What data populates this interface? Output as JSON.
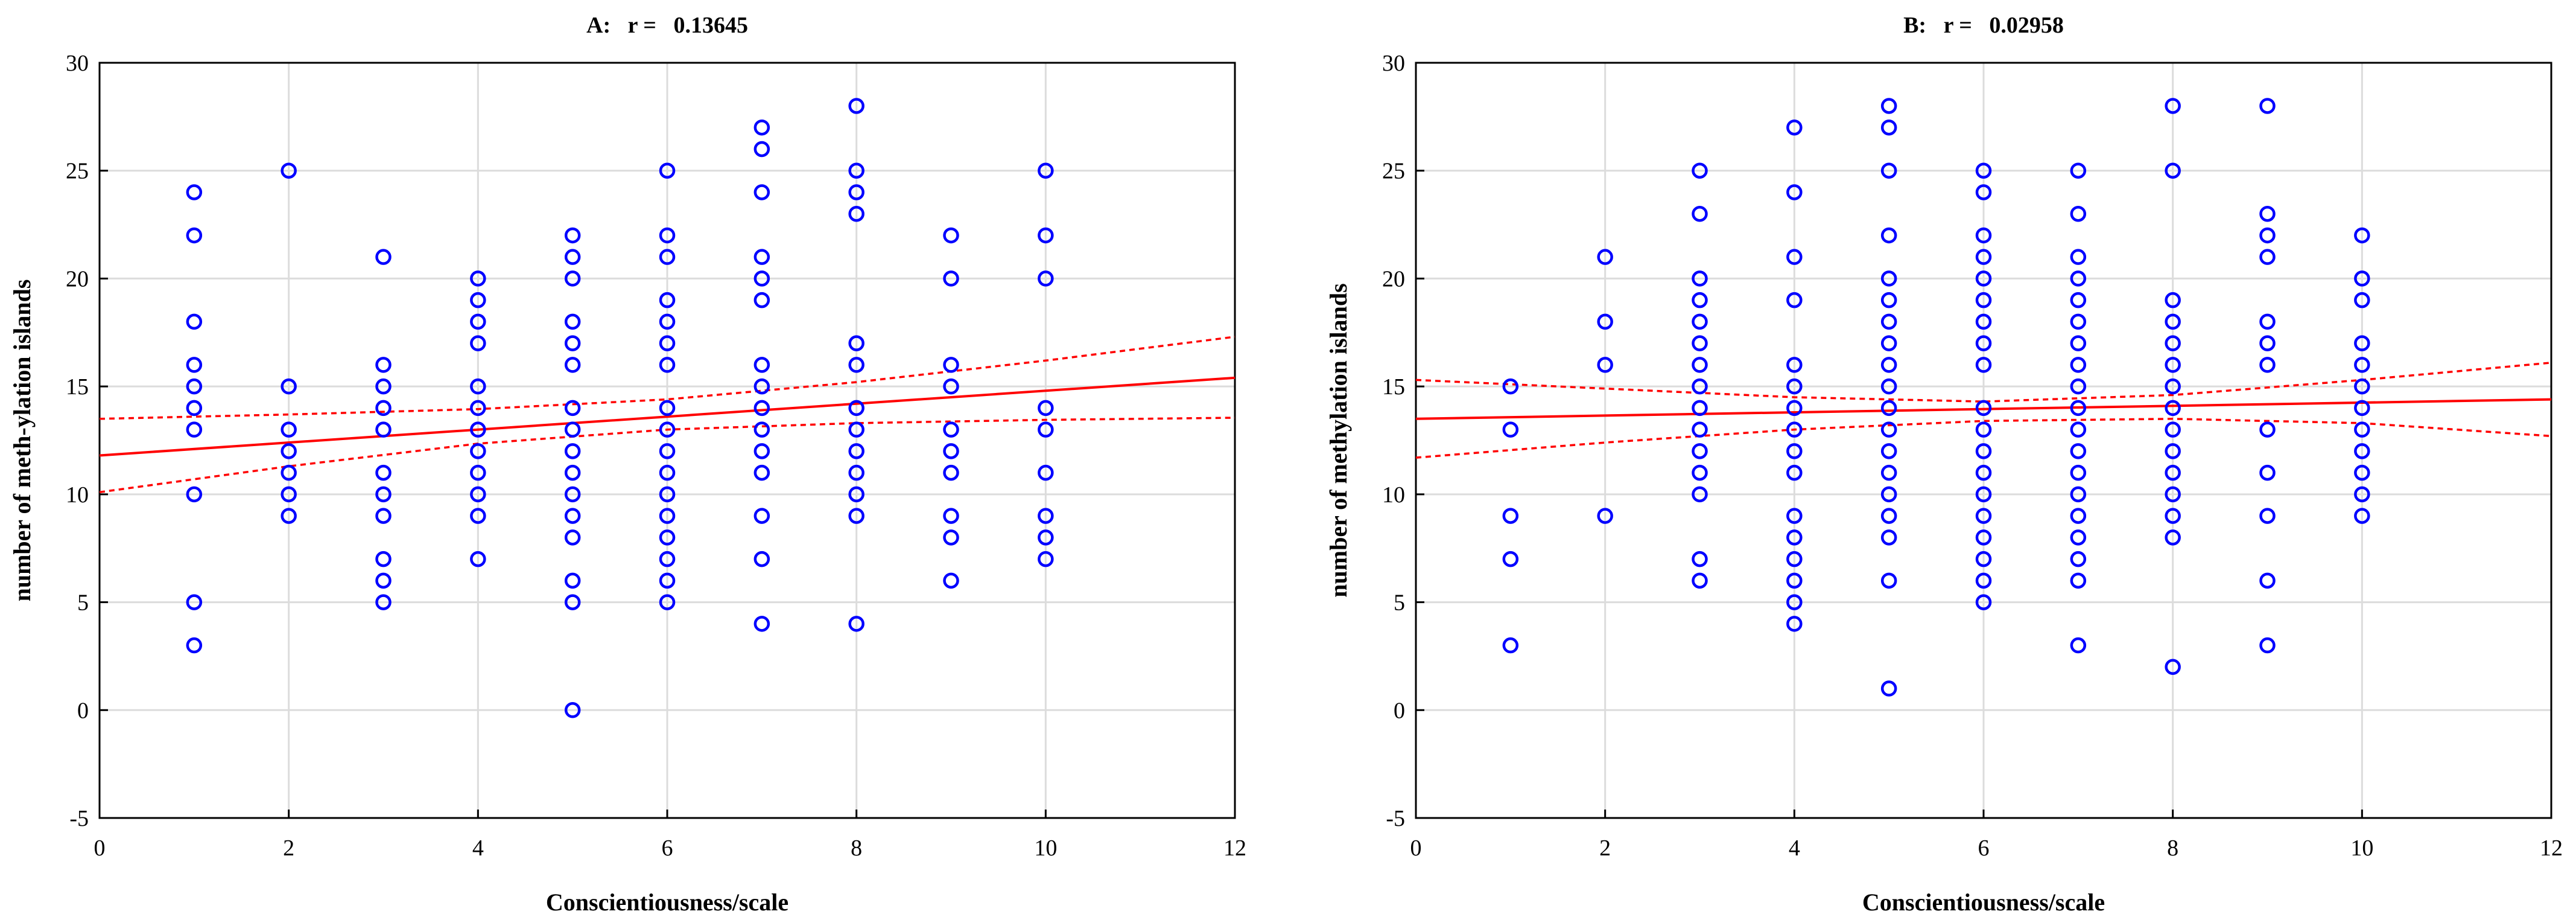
{
  "chart_data": [
    {
      "type": "scatter",
      "title": "A:   r =   0.13645",
      "xlabel": "Conscientiousness/scale",
      "ylabel": "number of meth-ylation islands",
      "xlim": [
        0,
        12
      ],
      "ylim": [
        -5,
        30
      ],
      "xticks": [
        0,
        2,
        4,
        6,
        8,
        10,
        12
      ],
      "yticks": [
        -5,
        0,
        5,
        10,
        15,
        20,
        25,
        30
      ],
      "grid": true,
      "points": {
        "1": [
          24,
          22,
          18,
          16,
          15,
          14,
          13,
          10,
          5,
          3
        ],
        "2": [
          25,
          15,
          13,
          12,
          11,
          10,
          9
        ],
        "3": [
          21,
          16,
          15,
          14,
          13,
          11,
          10,
          9,
          7,
          6,
          5
        ],
        "4": [
          20,
          19,
          18,
          17,
          15,
          14,
          13,
          12,
          11,
          10,
          9,
          7
        ],
        "5": [
          22,
          21,
          20,
          18,
          17,
          16,
          14,
          13,
          12,
          11,
          10,
          9,
          8,
          6,
          5,
          0
        ],
        "6": [
          25,
          22,
          21,
          19,
          18,
          17,
          16,
          14,
          13,
          12,
          11,
          10,
          9,
          8,
          7,
          6,
          5
        ],
        "7": [
          27,
          26,
          24,
          21,
          20,
          19,
          16,
          15,
          14,
          13,
          12,
          11,
          9,
          7,
          4
        ],
        "8": [
          28,
          25,
          24,
          23,
          17,
          16,
          14,
          13,
          12,
          11,
          10,
          9,
          4
        ],
        "9": [
          22,
          20,
          16,
          15,
          13,
          12,
          11,
          9,
          8,
          6
        ],
        "10": [
          25,
          22,
          20,
          14,
          13,
          11,
          9,
          8,
          7
        ]
      },
      "fit": {
        "x": [
          0,
          12
        ],
        "y": [
          11.8,
          15.4
        ]
      },
      "ci_upper": {
        "x": [
          0,
          2,
          4,
          6,
          8,
          10,
          12
        ],
        "y": [
          13.5,
          13.7,
          13.95,
          14.4,
          15.2,
          16.2,
          17.3
        ]
      },
      "ci_lower": {
        "x": [
          0,
          2,
          4,
          6,
          8,
          10,
          12
        ],
        "y": [
          10.1,
          11.3,
          12.35,
          13.0,
          13.3,
          13.45,
          13.55
        ]
      }
    },
    {
      "type": "scatter",
      "title": "B:   r =   0.02958",
      "xlabel": "Conscientiousness/scale",
      "ylabel": "number of methylation islands",
      "xlim": [
        0,
        12
      ],
      "ylim": [
        -5,
        30
      ],
      "xticks": [
        0,
        2,
        4,
        6,
        8,
        10,
        12
      ],
      "yticks": [
        -5,
        0,
        5,
        10,
        15,
        20,
        25,
        30
      ],
      "grid": true,
      "points": {
        "1": [
          15,
          13,
          9,
          7,
          3
        ],
        "2": [
          21,
          18,
          16,
          9
        ],
        "3": [
          25,
          23,
          20,
          19,
          18,
          17,
          16,
          15,
          14,
          13,
          12,
          11,
          10,
          7,
          6
        ],
        "4": [
          27,
          24,
          21,
          19,
          16,
          15,
          14,
          13,
          12,
          11,
          9,
          8,
          7,
          6,
          5,
          4
        ],
        "5": [
          28,
          27,
          25,
          22,
          20,
          19,
          18,
          17,
          16,
          15,
          14,
          13,
          12,
          11,
          10,
          9,
          8,
          6,
          1
        ],
        "6": [
          25,
          24,
          22,
          21,
          20,
          19,
          18,
          17,
          16,
          14,
          13,
          12,
          11,
          10,
          9,
          8,
          7,
          6,
          5
        ],
        "7": [
          25,
          23,
          21,
          20,
          19,
          18,
          17,
          16,
          15,
          14,
          13,
          12,
          11,
          10,
          9,
          8,
          7,
          6,
          3
        ],
        "8": [
          28,
          25,
          19,
          18,
          17,
          16,
          15,
          14,
          13,
          12,
          11,
          10,
          9,
          8,
          2
        ],
        "9": [
          28,
          23,
          22,
          21,
          18,
          17,
          16,
          13,
          11,
          9,
          6,
          3
        ],
        "10": [
          22,
          20,
          19,
          17,
          16,
          15,
          14,
          13,
          12,
          11,
          10,
          9
        ]
      },
      "fit": {
        "x": [
          0,
          12
        ],
        "y": [
          13.5,
          14.4
        ]
      },
      "ci_upper": {
        "x": [
          0,
          2,
          4,
          6,
          8,
          10,
          12
        ],
        "y": [
          15.3,
          14.9,
          14.5,
          14.3,
          14.6,
          15.3,
          16.1
        ]
      },
      "ci_lower": {
        "x": [
          0,
          2,
          4,
          6,
          8,
          10,
          12
        ],
        "y": [
          11.7,
          12.4,
          13.0,
          13.4,
          13.5,
          13.3,
          12.7
        ]
      }
    }
  ]
}
